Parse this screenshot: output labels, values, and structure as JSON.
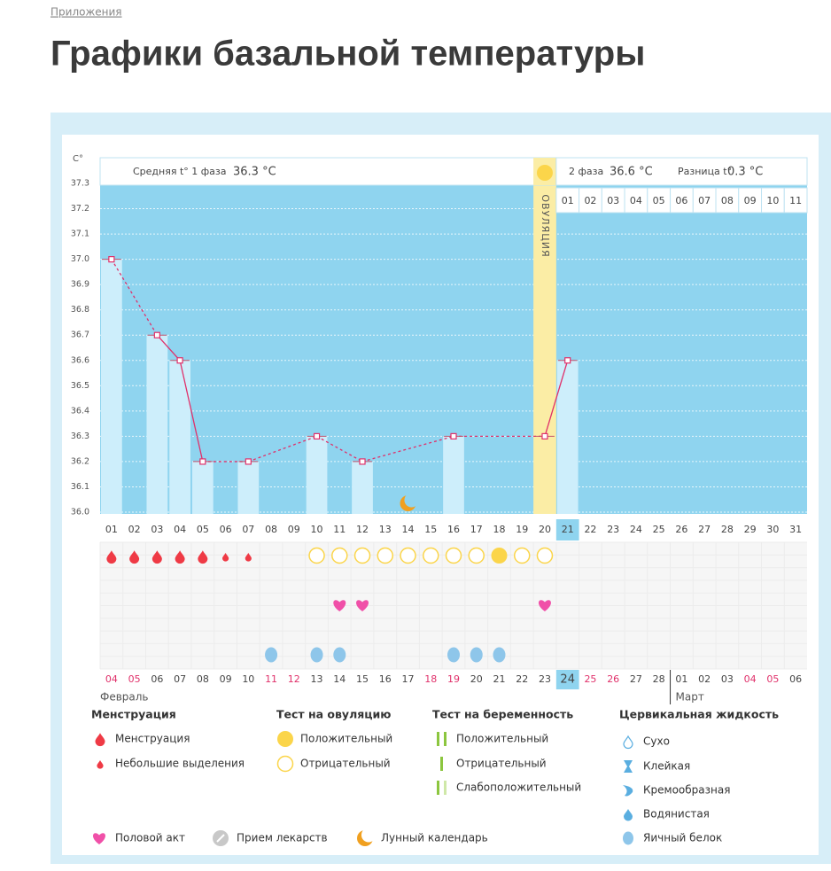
{
  "breadcrumb": "Приложения",
  "heading": "Графики базальной температуры",
  "chart_data": {
    "type": "line",
    "y_label": "C°",
    "phase1_label": "Средняя t° 1 фаза",
    "phase1_value": "36.3 °C",
    "phase2_label": "2 фаза",
    "phase2_value": "36.6 °C",
    "diff_label": "Разница t°",
    "diff_value": "0.3 °C",
    "categories": [
      "01",
      "02",
      "03",
      "04",
      "05",
      "06",
      "07",
      "08",
      "09",
      "10",
      "11",
      "12",
      "13",
      "14",
      "15",
      "16",
      "17",
      "18",
      "19",
      "20",
      "21",
      "22",
      "23",
      "24",
      "25",
      "26",
      "27",
      "28",
      "29",
      "30",
      "31"
    ],
    "values": [
      37.0,
      null,
      36.7,
      36.6,
      36.2,
      null,
      36.2,
      null,
      null,
      36.3,
      null,
      36.2,
      null,
      null,
      null,
      36.3,
      null,
      null,
      null,
      36.3,
      36.6,
      null,
      null,
      null,
      null,
      null,
      null,
      null,
      null,
      null,
      null
    ],
    "color": "#e0306a",
    "bar_color": "#cdeefb",
    "plot_color": "#8fd4ef",
    "ylim": [
      36.0,
      37.3
    ],
    "yticks": [
      {
        "value": 36.0,
        "label": "36.0"
      },
      36.1,
      36.2,
      36.3,
      36.4,
      36.5,
      36.6,
      36.7,
      36.8,
      36.9,
      {
        "value": 37.0,
        "label": "37.0"
      },
      37.1,
      37.2,
      37.3
    ],
    "grid": true,
    "ovulation_day": "20",
    "ovulation_label": "ОВУЛЯЦИЯ",
    "phase2_days": [
      "01",
      "02",
      "03",
      "04",
      "05",
      "06",
      "07",
      "08",
      "09",
      "10",
      "11"
    ],
    "current_day": "21",
    "dates": [
      "04",
      "05",
      "06",
      "07",
      "08",
      "09",
      "10",
      "11",
      "12",
      "13",
      "14",
      "15",
      "16",
      "17",
      "18",
      "19",
      "20",
      "21",
      "22",
      "23",
      "24",
      "25",
      "26",
      "27",
      "28",
      "01",
      "02",
      "03",
      "04",
      "05",
      "06"
    ],
    "weekend": [
      true,
      true,
      false,
      false,
      false,
      false,
      false,
      true,
      true,
      false,
      false,
      false,
      false,
      false,
      true,
      true,
      false,
      false,
      false,
      false,
      false,
      true,
      true,
      false,
      false,
      false,
      false,
      false,
      true,
      true,
      false
    ],
    "months": [
      "Февраль",
      "Март"
    ],
    "menstruation": [
      "01",
      "02",
      "03",
      "04",
      "05"
    ],
    "spotting": [
      "06",
      "07"
    ],
    "ovulation_test_positive": [
      "18"
    ],
    "ovulation_test_negative": [
      "10",
      "11",
      "12",
      "13",
      "14",
      "15",
      "16",
      "17",
      "19",
      "20"
    ],
    "intercourse": [
      "11",
      "12",
      "20"
    ],
    "cervical_egg_white": [
      "08",
      "10",
      "11",
      "16",
      "17",
      "18"
    ],
    "moon": [
      "14"
    ]
  },
  "legend": {
    "groups": [
      {
        "title": "Менструация",
        "items": [
          "Менструация",
          "Небольшие выделения"
        ]
      },
      {
        "title": "Тест на овуляцию",
        "items": [
          "Положительный",
          "Отрицательный"
        ]
      },
      {
        "title": "Тест на беременность",
        "items": [
          "Положительный",
          "Отрицательный",
          "Слабоположительный"
        ]
      },
      {
        "title": "Цервикальная жидкость",
        "items": [
          "Сухо",
          "Клейкая",
          "Кремообразная",
          "Водянистая",
          "Яичный белок"
        ]
      }
    ],
    "extra": [
      "Половой акт",
      "Прием лекарств",
      "Лунный календарь"
    ]
  }
}
